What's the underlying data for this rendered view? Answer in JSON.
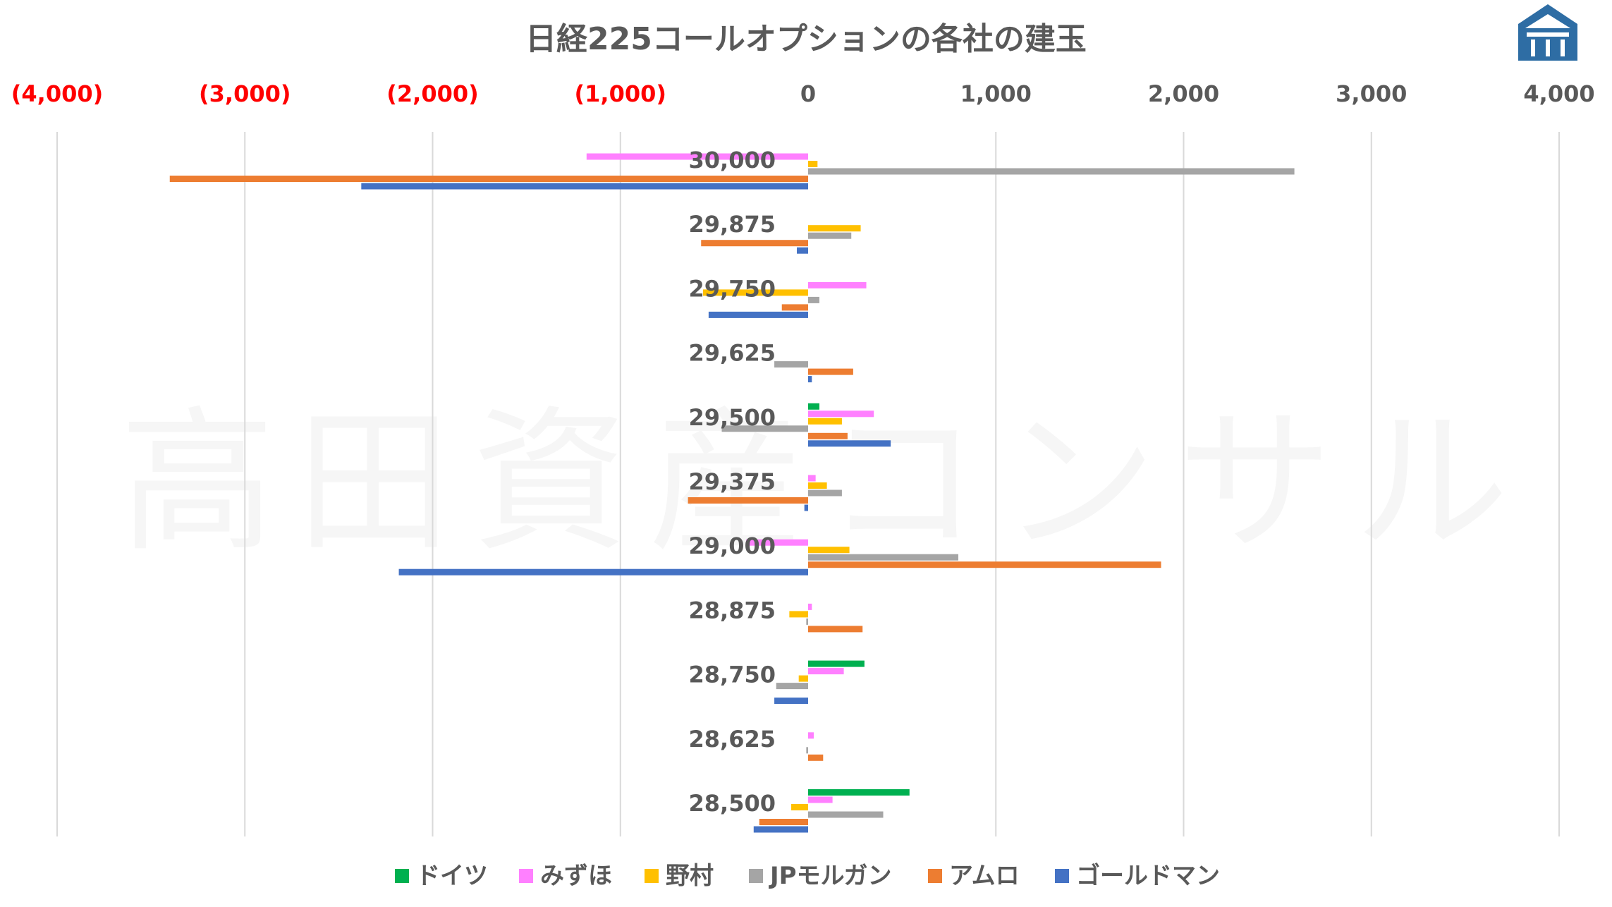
{
  "chart_data": {
    "type": "bar",
    "orientation": "horizontal",
    "title": "日経225コールオプションの各社の建玉",
    "xlim": [
      -4000,
      4000
    ],
    "grid": true,
    "legend_position": "bottom",
    "x_ticks": [
      {
        "value": -4000,
        "label": "(4,000)"
      },
      {
        "value": -3000,
        "label": "(3,000)"
      },
      {
        "value": -2000,
        "label": "(2,000)"
      },
      {
        "value": -1000,
        "label": "(1,000)"
      },
      {
        "value": 0,
        "label": "0"
      },
      {
        "value": 1000,
        "label": "1,000"
      },
      {
        "value": 2000,
        "label": "2,000"
      },
      {
        "value": 3000,
        "label": "3,000"
      },
      {
        "value": 4000,
        "label": "4,000"
      }
    ],
    "categories": [
      "30,000",
      "29,875",
      "29,750",
      "29,625",
      "29,500",
      "29,375",
      "29,000",
      "28,875",
      "28,750",
      "28,625",
      "28,500"
    ],
    "series": [
      {
        "name": "ドイツ",
        "color": "#00b050",
        "values": [
          0,
          0,
          0,
          0,
          60,
          0,
          0,
          0,
          300,
          0,
          540
        ]
      },
      {
        "name": "みずほ",
        "color": "#ff80ff",
        "values": [
          -1180,
          0,
          310,
          0,
          350,
          40,
          -330,
          20,
          190,
          30,
          130
        ]
      },
      {
        "name": "野村",
        "color": "#ffc000",
        "values": [
          50,
          280,
          -560,
          0,
          180,
          100,
          220,
          -100,
          -50,
          0,
          -90
        ]
      },
      {
        "name": "JPモルガン",
        "color": "#a5a5a5",
        "values": [
          2590,
          230,
          60,
          -180,
          -460,
          180,
          800,
          -10,
          -170,
          -10,
          400
        ]
      },
      {
        "name": "アムロ",
        "color": "#ed7d31",
        "values": [
          -3400,
          -570,
          -140,
          240,
          210,
          -640,
          1880,
          290,
          0,
          80,
          -260
        ]
      },
      {
        "name": "ゴールドマン",
        "color": "#4472c4",
        "values": [
          -2380,
          -60,
          -530,
          20,
          440,
          -20,
          -2180,
          0,
          -180,
          0,
          -290
        ]
      }
    ],
    "watermark": "高田資産コンサル"
  }
}
